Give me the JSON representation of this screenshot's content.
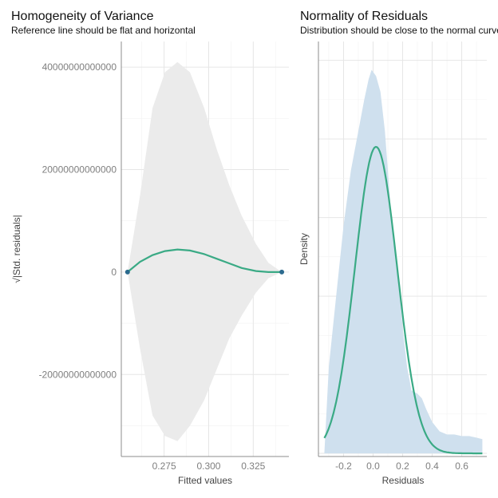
{
  "chart_data": [
    {
      "type": "line",
      "title": "Homogeneity of Variance",
      "subtitle": "Reference line should be flat and horizontal",
      "xlabel": "Fitted values",
      "ylabel": "√|Std. residuals|",
      "xlim": [
        0.251,
        0.345
      ],
      "ylim": [
        -36000000000000,
        45000000000000
      ],
      "x_ticks": [
        0.275,
        0.3,
        0.325
      ],
      "x_tick_labels": [
        "0.275",
        "0.300",
        "0.325"
      ],
      "y_ticks": [
        -20000000000000,
        0,
        20000000000000,
        40000000000000
      ],
      "y_tick_labels": [
        "-20000000000000",
        "0",
        "20000000000000",
        "40000000000000"
      ],
      "points": [
        {
          "x": 0.2545,
          "y": 0
        },
        {
          "x": 0.341,
          "y": 0
        }
      ],
      "smooth": {
        "x": [
          0.2545,
          0.2615,
          0.2685,
          0.2755,
          0.2825,
          0.2895,
          0.2975,
          0.3045,
          0.3115,
          0.3185,
          0.3265,
          0.3335,
          0.341
        ],
        "y": [
          0,
          2000000000000,
          3300000000000,
          4100000000000,
          4400000000000,
          4200000000000,
          3500000000000,
          2600000000000,
          1700000000000,
          800000000000,
          200000000000,
          0,
          0
        ]
      },
      "ci_upper": [
        0,
        15000000000000,
        32000000000000,
        39000000000000,
        41000000000000,
        39000000000000,
        32000000000000,
        24000000000000,
        17000000000000,
        11000000000000,
        5500000000000,
        1800000000000,
        0
      ],
      "ci_lower": [
        0,
        -15000000000000,
        -28000000000000,
        -32000000000000,
        -33000000000000,
        -30000000000000,
        -25000000000000,
        -19000000000000,
        -13000000000000,
        -8500000000000,
        -4000000000000,
        -1200000000000,
        0
      ],
      "colors": {
        "line": "#3aaa85",
        "point": "#2b6a8e",
        "ribbon": "#ebebeb"
      }
    },
    {
      "type": "area",
      "title": "Normality of Residuals",
      "subtitle": "Distribution should be close to the normal curve",
      "xlabel": "Residuals",
      "ylabel": "Density",
      "xlim": [
        -0.37,
        0.77
      ],
      "ylim": [
        -0.02,
        2.62
      ],
      "x_ticks": [
        -0.2,
        0.0,
        0.2,
        0.4,
        0.6
      ],
      "x_tick_labels": [
        "-0.2",
        "0.0",
        "0.2",
        "0.4",
        "0.6"
      ],
      "density": {
        "x": [
          -0.33,
          -0.3,
          -0.25,
          -0.2,
          -0.15,
          -0.1,
          -0.06,
          -0.03,
          -0.01,
          0.02,
          0.05,
          0.08,
          0.1,
          0.12,
          0.15,
          0.18,
          0.2,
          0.23,
          0.26,
          0.3,
          0.33,
          0.36,
          0.4,
          0.45,
          0.5,
          0.55,
          0.6,
          0.65,
          0.7,
          0.74
        ],
        "y": [
          0,
          0.55,
          1.0,
          1.45,
          1.8,
          2.05,
          2.25,
          2.38,
          2.44,
          2.4,
          2.3,
          2.05,
          1.8,
          1.55,
          1.28,
          1.02,
          0.8,
          0.55,
          0.4,
          0.38,
          0.35,
          0.28,
          0.2,
          0.14,
          0.12,
          0.12,
          0.11,
          0.11,
          0.1,
          0.09
        ]
      },
      "normal": {
        "mean": 0.02,
        "sd": 0.143,
        "peak": 1.95,
        "x_from": -0.33,
        "x_to": 0.74
      },
      "colors": {
        "line": "#3aaa85",
        "area": "#cfe0ee"
      }
    }
  ]
}
